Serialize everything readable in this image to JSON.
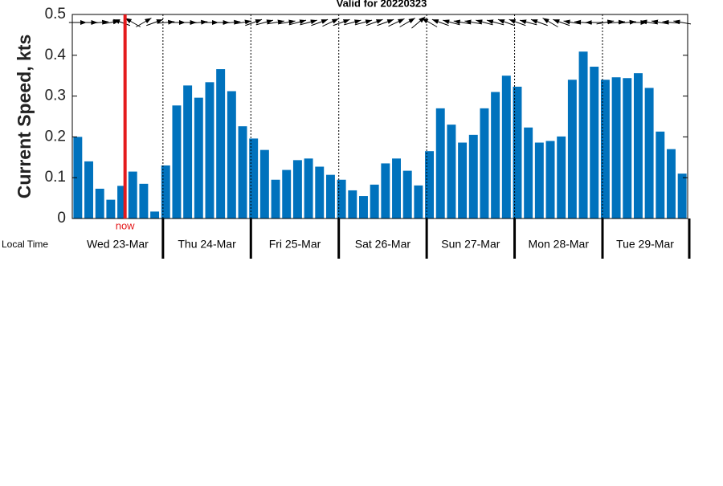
{
  "chart_data": {
    "type": "bar",
    "title": "Valid for 20220323",
    "ylabel": "Current Speed, kts",
    "xlabel": "Local Time",
    "days": [
      "Wed 23-Mar",
      "Thu 24-Mar",
      "Fri 25-Mar",
      "Sat 26-Mar",
      "Sun 27-Mar",
      "Mon 28-Mar",
      "Tue 29-Mar"
    ],
    "values": [
      0.2,
      0.14,
      0.073,
      0.046,
      0.08,
      0.115,
      0.085,
      0.017,
      0.13,
      0.277,
      0.326,
      0.296,
      0.334,
      0.366,
      0.312,
      0.226,
      0.196,
      0.168,
      0.095,
      0.119,
      0.143,
      0.147,
      0.127,
      0.107,
      0.095,
      0.069,
      0.055,
      0.083,
      0.135,
      0.147,
      0.117,
      0.081,
      0.165,
      0.27,
      0.23,
      0.186,
      0.205,
      0.27,
      0.31,
      0.35,
      0.323,
      0.223,
      0.186,
      0.19,
      0.201,
      0.34,
      0.409,
      0.372,
      0.34,
      0.346,
      0.344,
      0.356,
      0.32,
      0.213,
      0.17,
      0.11
    ],
    "directions": [
      0,
      0,
      5,
      10,
      160,
      150,
      30,
      20,
      5,
      0,
      0,
      5,
      0,
      0,
      5,
      10,
      20,
      15,
      10,
      10,
      15,
      15,
      20,
      25,
      20,
      15,
      15,
      20,
      20,
      25,
      30,
      40,
      150,
      160,
      165,
      170,
      170,
      165,
      165,
      160,
      160,
      165,
      160,
      150,
      160,
      170,
      175,
      180,
      10,
      5,
      5,
      0,
      170,
      170,
      175,
      170
    ],
    "color": "#0072bd",
    "now_label": "now",
    "now_index": 4.3,
    "now_color": "#e41a1c",
    "ylim": [
      0,
      0.5
    ],
    "yticks": [
      0,
      0.1,
      0.2,
      0.3,
      0.4,
      0.5
    ]
  }
}
